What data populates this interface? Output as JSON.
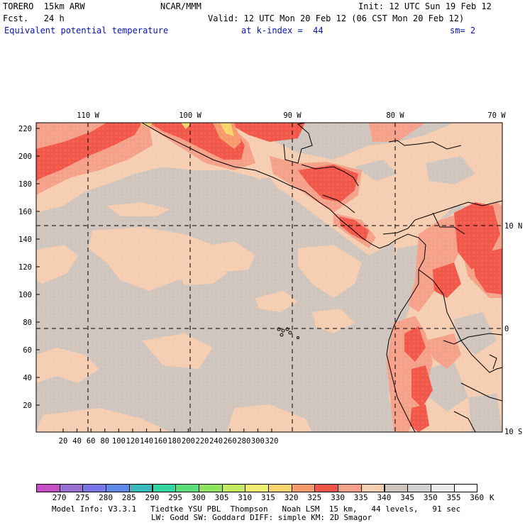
{
  "header": {
    "model": "TORERO  15km ARW",
    "org": "NCAR/MMM",
    "init": "Init: 12 UTC Sun 19 Feb 12",
    "fcst": "Fcst.   24 h",
    "valid": "Valid: 12 UTC Mon 20 Feb 12 (06 CST Mon 20 Feb 12)",
    "field": "Equivalent potential temperature",
    "level": "at k-index =  44",
    "smooth": "sm= 2"
  },
  "map": {
    "lon_labels": [
      "110 W",
      "100 W",
      "90 W",
      "80 W",
      "70 W"
    ],
    "lat_labels": [
      "10 N",
      "0",
      "10 S"
    ],
    "y_ticks": [
      "220",
      "200",
      "180",
      "160",
      "140",
      "120",
      "100",
      "80",
      "60",
      "40",
      "20"
    ],
    "x_ticks": [
      "20",
      "40",
      "60",
      "80",
      "100",
      "120",
      "140",
      "160",
      "180",
      "200",
      "220",
      "240",
      "260",
      "280",
      "300",
      "320"
    ],
    "background_value": "345-350 K (gray)",
    "colors": {
      "gray": "#cfc5bd",
      "peach": "#f5cdb1",
      "salmon": "#f5a089",
      "red": "#f2584a",
      "orange": "#f79b6c",
      "yellow": "#f8d46a"
    }
  },
  "colorbar": {
    "labels": [
      "270",
      "275",
      "280",
      "285",
      "290",
      "295",
      "300",
      "305",
      "310",
      "315",
      "320",
      "325",
      "330",
      "335",
      "340",
      "345",
      "350",
      "355",
      "360",
      "K"
    ],
    "colors": [
      "#c64fc6",
      "#9b6fd6",
      "#7a78e8",
      "#5e8ae8",
      "#38b9bd",
      "#34d7a4",
      "#5ce07a",
      "#8fe55f",
      "#c4ec62",
      "#f2ef72",
      "#f8d46a",
      "#f79b6c",
      "#f2584a",
      "#f5a089",
      "#f5cdb1",
      "#cfc5bd",
      "#d2d2d6",
      "#e9e9ee",
      "#ffffff"
    ]
  },
  "footer": {
    "line1": "Model Info: V3.3.1   Tiedtke YSU PBL  Thompson   Noah LSM  15 km,   44 levels,   91 sec",
    "line2": "LW: Godd SW: Goddard DIFF: simple KM: 2D Smagor"
  }
}
